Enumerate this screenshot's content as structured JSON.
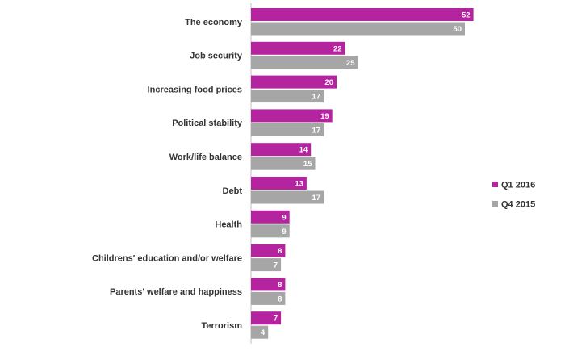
{
  "chart_data": {
    "type": "bar",
    "orientation": "horizontal",
    "categories": [
      "The economy",
      "Job security",
      "Increasing food prices",
      "Political stability",
      "Work/life balance",
      "Debt",
      "Health",
      "Childrens' education and/or welfare",
      "Parents' welfare and happiness",
      "Terrorism"
    ],
    "series": [
      {
        "name": "Q1 2016",
        "color": "#B4249E",
        "label_color": "#ffffff",
        "values": [
          52,
          22,
          20,
          19,
          14,
          13,
          9,
          8,
          8,
          7
        ]
      },
      {
        "name": "Q4 2015",
        "color": "#A6A6A6",
        "label_color": "#ffffff",
        "values": [
          50,
          25,
          17,
          17,
          15,
          17,
          9,
          7,
          8,
          4
        ]
      }
    ],
    "xlim": [
      0,
      70
    ],
    "grid": false,
    "data_labels": true,
    "legend": {
      "position": "right"
    }
  }
}
